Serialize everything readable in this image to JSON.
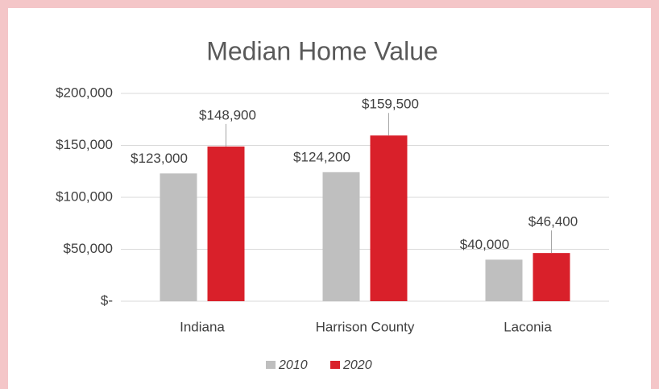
{
  "chart_data": {
    "type": "bar",
    "title": "Median Home Value",
    "categories": [
      "Indiana",
      "Harrison County",
      "Laconia"
    ],
    "series": [
      {
        "name": "2010",
        "color": "#bfbfbf",
        "values": [
          123000,
          124200,
          40000
        ],
        "value_labels": [
          "$123,000",
          "$124,200",
          "$40,000"
        ]
      },
      {
        "name": "2020",
        "color": "#d9202a",
        "values": [
          148900,
          159500,
          46400
        ],
        "value_labels": [
          "$148,900",
          "$159,500",
          "$46,400"
        ]
      }
    ],
    "ylim": [
      0,
      200000
    ],
    "yticks": [
      {
        "value": 0,
        "label": "$-"
      },
      {
        "value": 50000,
        "label": "$50,000"
      },
      {
        "value": 100000,
        "label": "$100,000"
      },
      {
        "value": 150000,
        "label": "$150,000"
      },
      {
        "value": 200000,
        "label": "$200,000"
      }
    ],
    "grid": true,
    "legend": "bottom"
  }
}
